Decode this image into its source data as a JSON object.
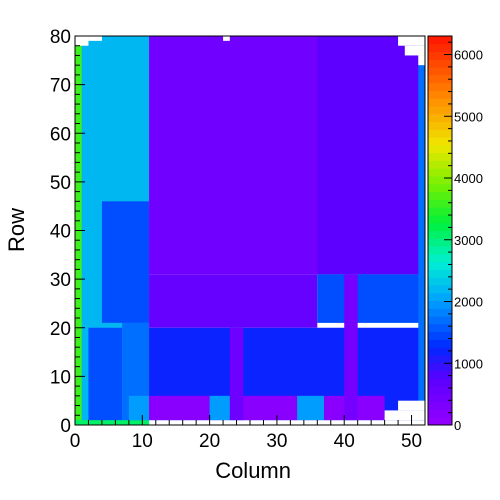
{
  "chart_data": {
    "type": "heatmap",
    "title": "",
    "xlabel": "Column",
    "ylabel": "Row",
    "xlim": [
      0,
      52
    ],
    "ylim": [
      0,
      80
    ],
    "zlim": [
      0,
      6300
    ],
    "x_ticks": [
      0,
      10,
      20,
      30,
      40,
      50
    ],
    "y_ticks": [
      0,
      10,
      20,
      30,
      40,
      50,
      60,
      70,
      80
    ],
    "colorbar_ticks": [
      0,
      1000,
      2000,
      3000,
      4000,
      5000,
      6000
    ],
    "colorbar_tick_labels": [
      "0",
      "1000",
      "2000",
      "3000",
      "4000",
      "5000",
      "6000"
    ],
    "grid": false,
    "legend": "colorbar-right",
    "regions": [
      {
        "name": "left-block",
        "x": [
          0,
          11
        ],
        "y": [
          0,
          80
        ],
        "value": 2200
      },
      {
        "name": "left-edge-column",
        "x": [
          0,
          1
        ],
        "y": [
          0,
          80
        ],
        "value": 3600
      },
      {
        "name": "left-bottom-row",
        "x": [
          0,
          11
        ],
        "y": [
          0,
          1
        ],
        "value": 3100
      },
      {
        "name": "left-mid-block",
        "x": [
          4,
          11
        ],
        "y": [
          21,
          46
        ],
        "value": 1500
      },
      {
        "name": "left-low-block",
        "x": [
          2,
          7
        ],
        "y": [
          1,
          20
        ],
        "value": 1500
      },
      {
        "name": "left-inner-low",
        "x": [
          7,
          11
        ],
        "y": [
          1,
          21
        ],
        "value": 1700
      },
      {
        "name": "upper-right-block",
        "x": [
          11,
          52
        ],
        "y": [
          31,
          80
        ],
        "value": 480
      },
      {
        "name": "upper-right-third",
        "x": [
          36,
          52
        ],
        "y": [
          31,
          80
        ],
        "value": 700
      },
      {
        "name": "lower-middle-band",
        "x": [
          11,
          36
        ],
        "y": [
          20,
          31
        ],
        "value": 600
      },
      {
        "name": "lower-right-band",
        "x": [
          36,
          52
        ],
        "y": [
          21,
          31
        ],
        "value": 1500
      },
      {
        "name": "bottom-area",
        "x": [
          11,
          52
        ],
        "y": [
          1,
          20
        ],
        "value": 1200
      },
      {
        "name": "bottom-pad-1",
        "x": [
          11,
          20
        ],
        "y": [
          1,
          6
        ],
        "value": 150
      },
      {
        "name": "bottom-pad-2",
        "x": [
          24,
          33
        ],
        "y": [
          1,
          6
        ],
        "value": 150
      },
      {
        "name": "bottom-pad-3",
        "x": [
          37,
          46
        ],
        "y": [
          1,
          6
        ],
        "value": 150
      },
      {
        "name": "bottom-gap-1",
        "x": [
          8,
          11
        ],
        "y": [
          1,
          6
        ],
        "value": 2000
      },
      {
        "name": "bottom-gap-2",
        "x": [
          20,
          24
        ],
        "y": [
          1,
          6
        ],
        "value": 2000
      },
      {
        "name": "bottom-gap-3",
        "x": [
          33,
          37
        ],
        "y": [
          1,
          6
        ],
        "value": 2000
      },
      {
        "name": "column-stripe-23",
        "x": [
          23,
          25
        ],
        "y": [
          1,
          20
        ],
        "value": 500
      },
      {
        "name": "column-stripe-40",
        "x": [
          40,
          42
        ],
        "y": [
          1,
          31
        ],
        "value": 400
      },
      {
        "name": "right-edge-column",
        "x": [
          51,
          52
        ],
        "y": [
          1,
          80
        ],
        "value": 1700
      }
    ],
    "empty_cells": [
      {
        "x": [
          0,
          2
        ],
        "y": [
          78,
          80
        ]
      },
      {
        "x": [
          2,
          4
        ],
        "y": [
          79,
          80
        ]
      },
      {
        "x": [
          22,
          23
        ],
        "y": [
          79,
          80
        ]
      },
      {
        "x": [
          48,
          52
        ],
        "y": [
          78,
          80
        ]
      },
      {
        "x": [
          49,
          52
        ],
        "y": [
          76,
          78
        ]
      },
      {
        "x": [
          51,
          52
        ],
        "y": [
          74,
          76
        ]
      },
      {
        "x": [
          46,
          52
        ],
        "y": [
          1,
          3
        ]
      },
      {
        "x": [
          48,
          52
        ],
        "y": [
          3,
          5
        ]
      }
    ]
  }
}
